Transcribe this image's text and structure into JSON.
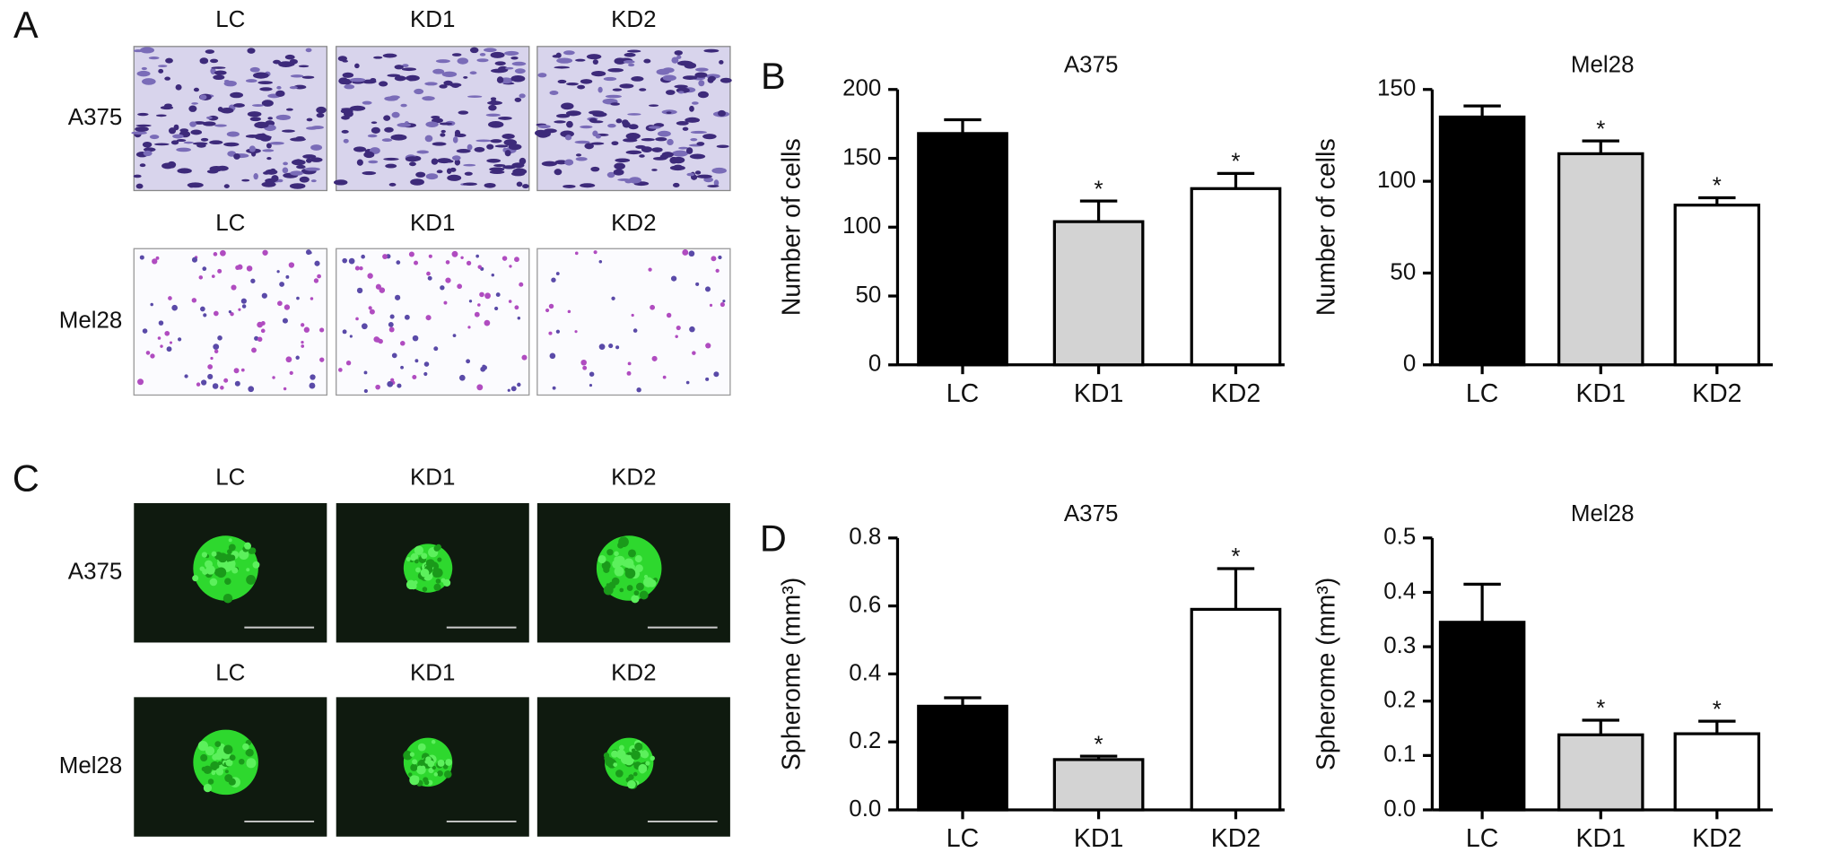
{
  "panels": [
    {
      "label": "A",
      "rows": [
        {
          "label": "A375",
          "columns": [
            "LC",
            "KD1",
            "KD2"
          ]
        },
        {
          "label": "Mel28",
          "columns": [
            "LC",
            "KD1",
            "KD2"
          ]
        }
      ]
    },
    {
      "label": "B"
    },
    {
      "label": "C",
      "rows": [
        {
          "label": "A375",
          "columns": [
            "LC",
            "KD1",
            "KD2"
          ]
        },
        {
          "label": "Mel28",
          "columns": [
            "LC",
            "KD1",
            "KD2"
          ]
        }
      ]
    },
    {
      "label": "D"
    }
  ],
  "chart_data": [
    {
      "type": "bar",
      "title": "A375",
      "y_label": "Number of cells",
      "categories": [
        "LC",
        "KD1",
        "KD2"
      ],
      "values": [
        168,
        104,
        128
      ],
      "errors": [
        10,
        15,
        11
      ],
      "significance": [
        null,
        "*",
        "*"
      ],
      "colors": [
        "#000000",
        "#d3d3d3",
        "#ffffff"
      ],
      "ylim": [
        0,
        200
      ],
      "yticks": [
        0,
        50,
        100,
        150,
        200
      ]
    },
    {
      "type": "bar",
      "title": "Mel28",
      "y_label": "Number of cells",
      "categories": [
        "LC",
        "KD1",
        "KD2"
      ],
      "values": [
        135,
        115,
        87
      ],
      "errors": [
        6,
        7,
        4
      ],
      "significance": [
        null,
        "*",
        "*"
      ],
      "colors": [
        "#000000",
        "#d3d3d3",
        "#ffffff"
      ],
      "ylim": [
        0,
        150
      ],
      "yticks": [
        0,
        50,
        100,
        150
      ]
    },
    {
      "type": "bar",
      "title": "A375",
      "y_label": "Spherome (mm³)",
      "categories": [
        "LC",
        "KD1",
        "KD2"
      ],
      "values": [
        0.305,
        0.148,
        0.59
      ],
      "errors": [
        0.025,
        0.01,
        0.12
      ],
      "significance": [
        null,
        "*",
        "*"
      ],
      "colors": [
        "#000000",
        "#d3d3d3",
        "#ffffff"
      ],
      "ylim": [
        0,
        0.8
      ],
      "yticks": [
        {
          "value": 0,
          "label": "0.0"
        },
        0.2,
        0.4,
        0.6,
        0.8
      ]
    },
    {
      "type": "bar",
      "title": "Mel28",
      "y_label": "Spherome (mm³)",
      "categories": [
        "LC",
        "KD1",
        "KD2"
      ],
      "values": [
        0.345,
        0.138,
        0.14
      ],
      "errors": [
        0.07,
        0.027,
        0.023
      ],
      "significance": [
        null,
        "*",
        "*"
      ],
      "colors": [
        "#000000",
        "#d3d3d3",
        "#ffffff"
      ],
      "ylim": [
        0,
        0.5
      ],
      "yticks": [
        {
          "value": 0,
          "label": "0.0"
        },
        0.1,
        0.2,
        0.3,
        0.4,
        0.5
      ]
    }
  ]
}
